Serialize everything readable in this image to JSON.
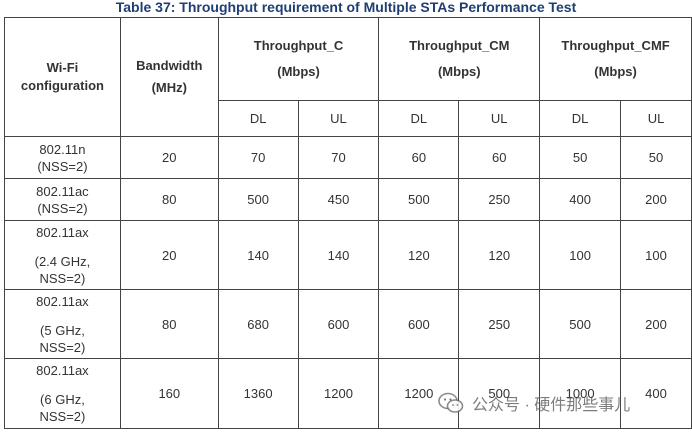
{
  "caption": "Table 37: Throughput requirement of Multiple STAs Performance Test",
  "headers": {
    "wifi_config": [
      "Wi-Fi",
      "configuration"
    ],
    "bandwidth": [
      "Bandwidth",
      "(MHz)"
    ],
    "groups": [
      {
        "name": "Throughput_C",
        "unit": "(Mbps)"
      },
      {
        "name": "Throughput_CM",
        "unit": "(Mbps)"
      },
      {
        "name": "Throughput_CMF",
        "unit": "(Mbps)"
      }
    ],
    "sub": [
      "DL",
      "UL",
      "DL",
      "UL",
      "DL",
      "UL"
    ]
  },
  "rows": [
    {
      "config": [
        "802.11n",
        "(NSS=2)"
      ],
      "bandwidth": "20",
      "values": [
        "70",
        "70",
        "60",
        "60",
        "50",
        "50"
      ]
    },
    {
      "config": [
        "802.11ac",
        "(NSS=2)"
      ],
      "bandwidth": "80",
      "values": [
        "500",
        "450",
        "500",
        "250",
        "400",
        "200"
      ]
    },
    {
      "config": [
        "802.11ax",
        "(2.4 GHz,",
        "NSS=2)"
      ],
      "bandwidth": "20",
      "values": [
        "140",
        "140",
        "120",
        "120",
        "100",
        "100"
      ]
    },
    {
      "config": [
        "802.11ax",
        "(5 GHz,",
        "NSS=2)"
      ],
      "bandwidth": "80",
      "values": [
        "680",
        "600",
        "600",
        "250",
        "500",
        "200"
      ]
    },
    {
      "config": [
        "802.11ax",
        "(6 GHz,",
        "NSS=2)"
      ],
      "bandwidth": "160",
      "values": [
        "1360",
        "1200",
        "1200",
        "500",
        "1000",
        "400"
      ]
    }
  ],
  "watermark": {
    "text": "公众号 · 硬件那些事儿",
    "icon": "wechat-icon"
  }
}
